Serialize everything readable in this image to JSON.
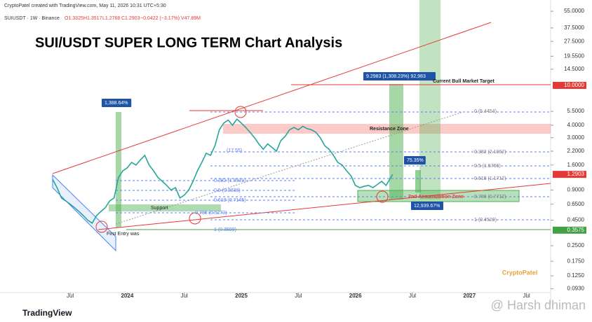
{
  "chart_data": {
    "type": "line",
    "credit": "CryptoPatel created with TradingView.com, May 11, 2026 10:31 UTC+5:30",
    "symbol": "SUIUSDT · 1W · Binance",
    "ohlc": [
      "O1.3325",
      "H1.3517",
      "L1.2768",
      "C1.2903",
      "−0.0422 (−3.17%)",
      "V47.89M"
    ],
    "title": "SUI/USDT SUPER LONG TERM Chart Analysis",
    "log_scale": true,
    "color": "#26a69a",
    "x": [
      0,
      2,
      4,
      6,
      8,
      10,
      12,
      14,
      16,
      18,
      20,
      22,
      24,
      26,
      28,
      30,
      32,
      34,
      36,
      38,
      40,
      42,
      44,
      46,
      48,
      50,
      52,
      54,
      56,
      58,
      60,
      62,
      64,
      66,
      68,
      70,
      72,
      74,
      76,
      78,
      80,
      82,
      84,
      86,
      88,
      90,
      92,
      94,
      96,
      98,
      100,
      102,
      104,
      106,
      108,
      110,
      112,
      114,
      116,
      118,
      120,
      122,
      124,
      126,
      128,
      130,
      132,
      134,
      136,
      138,
      140,
      142,
      144,
      146,
      150,
      152,
      155
    ],
    "values": [
      1.15,
      0.95,
      0.75,
      0.7,
      0.65,
      0.6,
      0.55,
      0.5,
      0.45,
      0.42,
      0.5,
      0.55,
      0.6,
      0.7,
      0.75,
      1.2,
      1.4,
      1.5,
      1.7,
      1.6,
      1.8,
      2.0,
      1.6,
      1.4,
      1.2,
      1.1,
      1.0,
      0.9,
      0.95,
      0.75,
      0.8,
      0.9,
      1.1,
      1.4,
      1.7,
      2.1,
      2.0,
      2.5,
      3.6,
      4.2,
      4.5,
      4.0,
      4.6,
      4.2,
      3.8,
      3.4,
      3.0,
      2.6,
      2.3,
      2.6,
      2.4,
      2.2,
      2.8,
      3.1,
      3.6,
      3.8,
      3.6,
      3.9,
      3.7,
      3.6,
      3.4,
      3.0,
      2.5,
      2.3,
      2.0,
      1.7,
      1.6,
      1.4,
      1.25,
      1.0,
      0.95,
      0.98,
      1.0,
      0.95,
      1.1,
      1.0,
      1.29
    ],
    "xlim": [
      -24,
      227
    ],
    "xticks": [
      {
        "value": 8,
        "label": "Jul"
      },
      34,
      {
        "value": 60,
        "label": "Jul"
      },
      86,
      {
        "value": 112,
        "label": "Jul"
      },
      138,
      {
        "value": 164,
        "label": "Jul"
      },
      190,
      {
        "value": 216,
        "label": "Jul"
      }
    ],
    "xtick_labels": [
      "Jul",
      "2024",
      "Jul",
      "2025",
      "Jul",
      "2026",
      "Jul",
      "2027",
      "Jul"
    ],
    "ylim": [
      0.085,
      71.3
    ],
    "yticks": [
      {
        "value": 55,
        "label": "55.0000"
      },
      {
        "value": 37.5,
        "label": "37.5000"
      },
      {
        "value": 27.5,
        "label": "27.5000"
      },
      {
        "value": 19.55,
        "label": "19.5500"
      },
      {
        "value": 14.5,
        "label": "14.5000"
      },
      {
        "value": 5.5,
        "label": "5.5000"
      },
      {
        "value": 4,
        "label": "4.0000"
      },
      {
        "value": 3,
        "label": "3.0000"
      },
      {
        "value": 2.2,
        "label": "2.2000"
      },
      {
        "value": 1.6,
        "label": "1.6000"
      },
      {
        "value": 0.9,
        "label": "0.9000"
      },
      {
        "value": 0.65,
        "label": "0.6500"
      },
      {
        "value": 0.45,
        "label": "0.4500"
      },
      {
        "value": 0.25,
        "label": "0.2500"
      },
      {
        "value": 0.175,
        "label": "0.1750"
      },
      {
        "value": 0.125,
        "label": "0.1250"
      },
      {
        "value": 0.093,
        "label": "0.0930"
      }
    ],
    "price_tags": [
      {
        "value": 10,
        "label": "10.0000",
        "color": "#e53935"
      },
      {
        "value": 1.2903,
        "label": "1.2903",
        "color": "#e53935"
      },
      {
        "value": 0.3575,
        "label": "0.3575",
        "color": "#43a047"
      }
    ],
    "annotations": [
      "1,388.64%",
      "9.2983 (1,308.23%) 92,983",
      "Current Bull Market Target",
      "Resistance Zone",
      "75.35%",
      "12,939.67%",
      "2nd Accumulation Zone",
      "Support",
      "First Entry was",
      "0 (5.4454)",
      "0.382 (2.1062)",
      "0.5 (1.5766)",
      "0.618 (1.1712)",
      "0.786 (0.7712)",
      "1 (0.4529)",
      "(17.55)",
      "0.382 (1.0931)",
      "0.5 (0.8838)",
      "0.618 (0.7145)",
      "0.786 (0.5273)",
      "1 (0.3599)"
    ],
    "logos": [
      "CryptoPatel",
      "TradingView",
      "@ Harsh dhiman"
    ]
  }
}
